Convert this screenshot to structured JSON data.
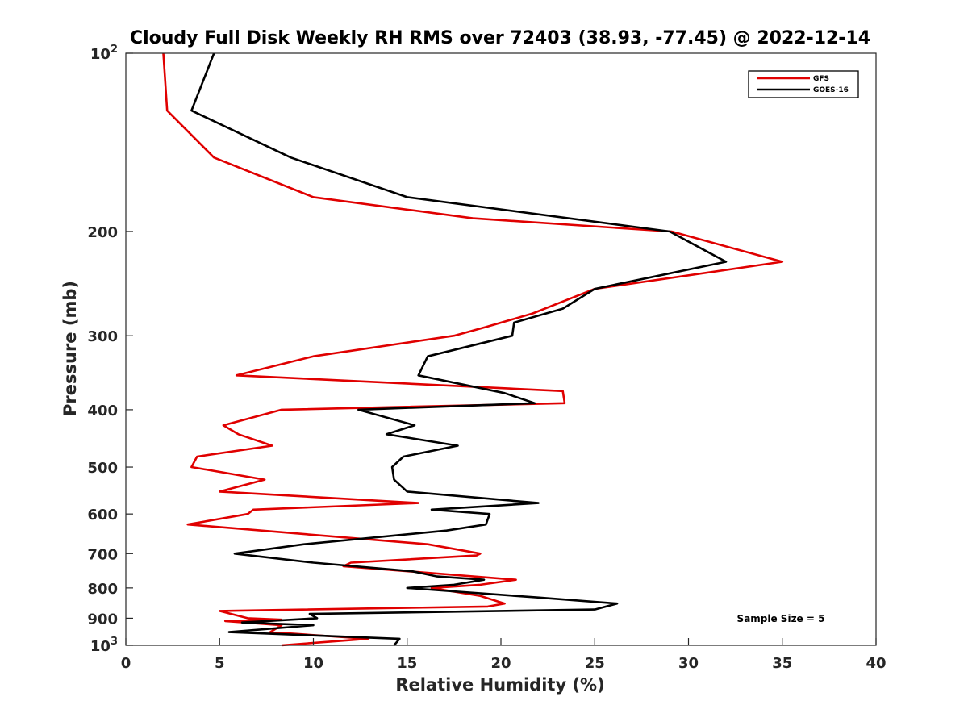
{
  "chart_data": {
    "type": "line",
    "title": "Cloudy Full Disk Weekly RH RMS over 72403 (38.93, -77.45) @ 2022-12-14",
    "xlabel": "Relative Humidity (%)",
    "ylabel": "Pressure (mb)",
    "xlim": [
      0,
      40
    ],
    "ylim": [
      100,
      1000
    ],
    "y_scale": "log",
    "y_reversed": true,
    "x_ticks": [
      "0",
      "5",
      "10",
      "15",
      "20",
      "25",
      "30",
      "35",
      "40"
    ],
    "x_tick_values": [
      0,
      5,
      10,
      15,
      20,
      25,
      30,
      35,
      40
    ],
    "y_ticks": [
      {
        "value": 100,
        "base": "10",
        "exp": "2"
      },
      {
        "value": 200,
        "label": "200"
      },
      {
        "value": 300,
        "label": "300"
      },
      {
        "value": 400,
        "label": "400"
      },
      {
        "value": 500,
        "label": "500"
      },
      {
        "value": 600,
        "label": "600"
      },
      {
        "value": 700,
        "label": "700"
      },
      {
        "value": 800,
        "label": "800"
      },
      {
        "value": 900,
        "label": "900"
      },
      {
        "value": 1000,
        "base": "10",
        "exp": "3"
      }
    ],
    "legend_position": "top-right",
    "grid": false,
    "annotation": "Sample Size = 5",
    "series": [
      {
        "name": "GFS",
        "color": "#e00000",
        "points": [
          [
            2.0,
            100
          ],
          [
            2.2,
            125
          ],
          [
            4.7,
            150
          ],
          [
            10.0,
            175
          ],
          [
            18.5,
            190
          ],
          [
            29.1,
            200
          ],
          [
            35.0,
            225
          ],
          [
            25.0,
            250
          ],
          [
            21.7,
            275
          ],
          [
            19.2,
            290
          ],
          [
            17.5,
            300
          ],
          [
            10.0,
            325
          ],
          [
            5.9,
            350
          ],
          [
            23.3,
            372
          ],
          [
            23.4,
            390
          ],
          [
            8.3,
            400
          ],
          [
            5.2,
            425
          ],
          [
            6.0,
            440
          ],
          [
            7.8,
            460
          ],
          [
            3.8,
            480
          ],
          [
            3.5,
            500
          ],
          [
            7.4,
            525
          ],
          [
            5.0,
            550
          ],
          [
            15.6,
            575
          ],
          [
            6.8,
            590
          ],
          [
            6.5,
            600
          ],
          [
            3.3,
            625
          ],
          [
            16.1,
            675
          ],
          [
            18.9,
            700
          ],
          [
            18.7,
            705
          ],
          [
            12.0,
            725
          ],
          [
            11.6,
            735
          ],
          [
            20.8,
            775
          ],
          [
            18.9,
            790
          ],
          [
            16.3,
            800
          ],
          [
            18.9,
            825
          ],
          [
            20.2,
            850
          ],
          [
            19.3,
            860
          ],
          [
            5.0,
            875
          ],
          [
            6.5,
            900
          ],
          [
            8.3,
            905
          ],
          [
            5.3,
            910
          ],
          [
            8.3,
            925
          ],
          [
            7.7,
            950
          ],
          [
            12.9,
            975
          ],
          [
            8.3,
            1000
          ]
        ]
      },
      {
        "name": "GOES-16",
        "color": "#000000",
        "points": [
          [
            4.7,
            100
          ],
          [
            3.5,
            125
          ],
          [
            8.8,
            150
          ],
          [
            15.0,
            175
          ],
          [
            29.0,
            200
          ],
          [
            32.0,
            225
          ],
          [
            25.0,
            250
          ],
          [
            23.3,
            270
          ],
          [
            20.7,
            285
          ],
          [
            20.6,
            300
          ],
          [
            16.1,
            325
          ],
          [
            15.6,
            350
          ],
          [
            20.2,
            375
          ],
          [
            21.8,
            390
          ],
          [
            12.4,
            400
          ],
          [
            15.4,
            425
          ],
          [
            13.9,
            440
          ],
          [
            17.7,
            460
          ],
          [
            14.8,
            480
          ],
          [
            14.2,
            500
          ],
          [
            14.3,
            525
          ],
          [
            15.0,
            550
          ],
          [
            22.0,
            575
          ],
          [
            16.3,
            590
          ],
          [
            19.4,
            600
          ],
          [
            19.2,
            625
          ],
          [
            17.1,
            640
          ],
          [
            9.5,
            675
          ],
          [
            5.8,
            700
          ],
          [
            10.0,
            725
          ],
          [
            15.3,
            750
          ],
          [
            16.6,
            765
          ],
          [
            19.1,
            775
          ],
          [
            17.5,
            790
          ],
          [
            15.0,
            800
          ],
          [
            21.9,
            830
          ],
          [
            26.2,
            850
          ],
          [
            25.0,
            870
          ],
          [
            9.8,
            885
          ],
          [
            10.2,
            900
          ],
          [
            6.2,
            915
          ],
          [
            10.0,
            925
          ],
          [
            5.5,
            950
          ],
          [
            14.6,
            975
          ],
          [
            14.3,
            1000
          ]
        ]
      }
    ]
  }
}
